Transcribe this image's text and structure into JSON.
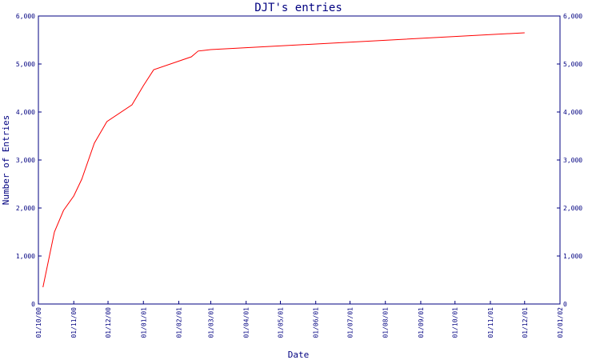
{
  "chart_data": {
    "type": "line",
    "title": "DJT's entries",
    "xlabel": "Date",
    "ylabel": "Number of Entries",
    "ylim": [
      0,
      6000
    ],
    "yticks": [
      0,
      1000,
      2000,
      3000,
      4000,
      5000,
      6000
    ],
    "ytick_labels": [
      "0",
      "1,000",
      "2,000",
      "3,000",
      "4,000",
      "5,000",
      "6,000"
    ],
    "xlim": [
      "2000-10-01",
      "2002-01-01"
    ],
    "xtick_labels": [
      "01/10/00",
      "01/11/00",
      "01/12/00",
      "01/01/01",
      "01/02/01",
      "01/03/01",
      "01/04/01",
      "01/05/01",
      "01/06/01",
      "01/07/01",
      "01/08/01",
      "01/09/01",
      "01/10/01",
      "01/11/01",
      "01/12/01",
      "01/01/02"
    ],
    "xtick_dates": [
      "2000-10-01",
      "2000-11-01",
      "2000-12-01",
      "2001-01-01",
      "2001-02-01",
      "2001-03-01",
      "2001-04-01",
      "2001-05-01",
      "2001-06-01",
      "2001-07-01",
      "2001-08-01",
      "2001-09-01",
      "2001-10-01",
      "2001-11-01",
      "2001-12-01",
      "2002-01-01"
    ],
    "grid": false,
    "line_color": "#ff0000",
    "axis_color": "#000080",
    "series": [
      {
        "x": [
          "2000-10-05",
          "2000-10-15",
          "2000-10-23",
          "2000-11-01",
          "2000-11-08",
          "2000-11-19",
          "2000-11-30",
          "2000-12-22",
          "2001-01-01",
          "2001-01-10",
          "2001-02-12",
          "2001-02-18",
          "2001-03-01",
          "2001-12-01"
        ],
        "y": [
          350,
          1500,
          1950,
          2250,
          2600,
          3350,
          3800,
          4150,
          4550,
          4880,
          5150,
          5270,
          5300,
          5650
        ]
      }
    ]
  }
}
